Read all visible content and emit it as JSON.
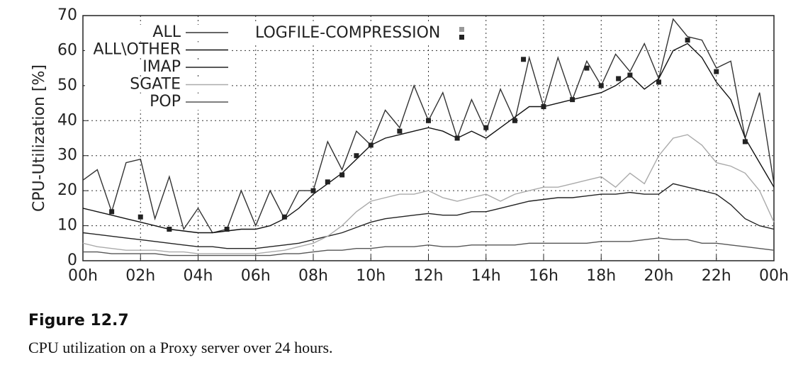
{
  "chart_data": {
    "type": "line",
    "ylabel": "CPU-Utilization [%]",
    "xlim": [
      0,
      24
    ],
    "xticks": [
      {
        "value": 0,
        "label": "00h"
      },
      {
        "value": 2,
        "label": "02h"
      },
      {
        "value": 4,
        "label": "04h"
      },
      {
        "value": 6,
        "label": "06h"
      },
      {
        "value": 8,
        "label": "08h"
      },
      {
        "value": 10,
        "label": "10h"
      },
      {
        "value": 12,
        "label": "12h"
      },
      {
        "value": 14,
        "label": "14h"
      },
      {
        "value": 16,
        "label": "16h"
      },
      {
        "value": 18,
        "label": "18h"
      },
      {
        "value": 20,
        "label": "20h"
      },
      {
        "value": 22,
        "label": "22h"
      },
      {
        "value": 24,
        "label": "00h"
      }
    ],
    "ylim": [
      0,
      70
    ],
    "yticks": [
      0,
      10,
      20,
      30,
      40,
      50,
      60,
      70
    ],
    "grid": true,
    "x": [
      0,
      0.5,
      1,
      1.5,
      2,
      2.5,
      3,
      3.5,
      4,
      4.5,
      5,
      5.5,
      6,
      6.5,
      7,
      7.5,
      8,
      8.5,
      9,
      9.5,
      10,
      10.5,
      11,
      11.5,
      12,
      12.5,
      13,
      13.5,
      14,
      14.5,
      15,
      15.5,
      16,
      16.5,
      17,
      17.5,
      18,
      18.5,
      19,
      19.5,
      20,
      20.5,
      21,
      21.5,
      22,
      22.5,
      23,
      23.5,
      24
    ],
    "series": [
      {
        "name": "ALL",
        "color": "#333333",
        "values": [
          23,
          26,
          14,
          28,
          29,
          12,
          24,
          9,
          15,
          8,
          9,
          20,
          10,
          20,
          12,
          20,
          20,
          34,
          26,
          37,
          33,
          43,
          38,
          50,
          40,
          48,
          35,
          46,
          37,
          49,
          40,
          58,
          44,
          58,
          46,
          57,
          50,
          59,
          54,
          62,
          52,
          69,
          64,
          63,
          55,
          57,
          35,
          48,
          22
        ]
      },
      {
        "name": "ALL\\OTHER",
        "color": "#111111",
        "values": [
          15,
          14,
          13,
          12,
          11,
          10,
          9,
          8.5,
          8,
          8,
          8.5,
          9,
          9,
          10,
          12,
          15,
          19,
          22,
          25,
          29,
          33,
          35,
          36,
          37,
          38,
          37,
          35,
          37,
          35,
          38,
          41,
          44,
          44,
          45,
          46,
          47,
          48,
          50,
          53,
          49,
          52,
          60,
          62,
          58,
          51,
          46,
          35,
          28,
          21
        ]
      },
      {
        "name": "IMAP",
        "color": "#222222",
        "values": [
          8,
          7.5,
          7,
          6.5,
          6,
          5.5,
          5,
          4.5,
          4,
          4,
          3.5,
          3.5,
          3.5,
          4,
          4.5,
          5,
          6,
          7,
          8,
          9.5,
          11,
          12,
          12.5,
          13,
          13.5,
          13,
          13,
          14,
          14,
          15,
          16,
          17,
          17.5,
          18,
          18,
          18.5,
          19,
          19,
          19.5,
          19,
          19,
          22,
          21,
          20,
          19,
          16,
          12,
          10,
          9
        ]
      },
      {
        "name": "SGATE",
        "color": "#aaaaaa",
        "values": [
          5,
          4,
          3.5,
          3,
          3,
          3,
          2.5,
          2.5,
          2,
          2,
          2,
          2,
          2,
          2.5,
          3,
          4,
          5,
          7,
          10,
          14,
          17,
          18,
          19,
          19,
          20,
          18,
          17,
          18,
          19,
          17,
          19,
          20,
          21,
          21,
          22,
          23,
          24,
          21,
          25,
          22,
          30,
          35,
          36,
          33,
          28,
          27,
          25,
          20,
          11
        ]
      },
      {
        "name": "POP",
        "color": "#555555",
        "values": [
          2.5,
          2.5,
          2,
          2,
          2,
          2,
          1.5,
          1.5,
          1.5,
          1.5,
          1.5,
          1.5,
          1.5,
          1.5,
          2,
          2,
          2.5,
          3,
          3,
          3.5,
          3.5,
          4,
          4,
          4,
          4.5,
          4,
          4,
          4.5,
          4.5,
          4.5,
          4.5,
          5,
          5,
          5,
          5,
          5,
          5.5,
          5.5,
          5.5,
          6,
          6.5,
          6,
          6,
          5,
          5,
          4.5,
          4,
          3.5,
          3
        ]
      },
      {
        "name": "LOGFILE-COMPRESSION",
        "type": "scatter",
        "color": "#222222",
        "x": [
          1,
          2,
          3,
          5,
          7,
          8,
          8.5,
          9,
          9.5,
          10,
          11,
          12,
          13,
          14,
          15,
          15.3,
          16,
          17,
          17.5,
          18,
          18.6,
          19,
          20,
          21,
          22,
          23
        ],
        "values": [
          14,
          12.5,
          9,
          9,
          12.5,
          20,
          22.5,
          24.5,
          30,
          33,
          37,
          40,
          35,
          38,
          40,
          57.5,
          44,
          46,
          55,
          50,
          52,
          53,
          51,
          63,
          54,
          34
        ]
      }
    ]
  },
  "figure": {
    "label": "Figure 12.7",
    "caption": "CPU utilization on a Proxy server over 24 hours."
  }
}
